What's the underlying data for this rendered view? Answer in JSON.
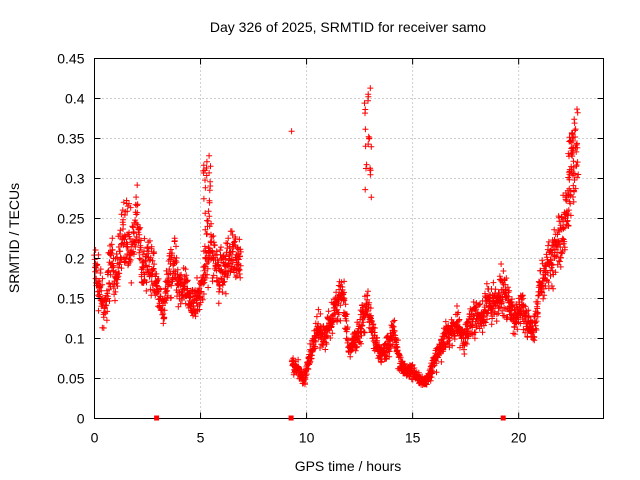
{
  "chart_data": {
    "type": "scatter",
    "title": "Day 326 of 2025, SRMTID for receiver samo",
    "xlabel": "GPS time / hours",
    "ylabel": "SRMTID / TECUs",
    "xlim": [
      0,
      24.0
    ],
    "ylim": [
      0,
      0.45
    ],
    "x_ticks": [
      0,
      5,
      10,
      15,
      20
    ],
    "x_tick_labels": [
      "0",
      "5",
      "10",
      "15",
      "20"
    ],
    "y_ticks": [
      0,
      0.05,
      0.1,
      0.15,
      0.2,
      0.25,
      0.3,
      0.35,
      0.4,
      0.45
    ],
    "y_tick_labels": [
      "0",
      "0.05",
      "0.1",
      "0.15",
      "0.2",
      "0.25",
      "0.3",
      "0.35",
      "0.4",
      "0.45"
    ],
    "grid": true,
    "colors": {
      "series": "#ff0000",
      "axis": "#000000",
      "grid": "#a0a0a0"
    },
    "series": [
      {
        "name": "SRMTID",
        "marker": "+",
        "segments": [
          {
            "x_start": 0.0,
            "x_end": 6.9,
            "points": [
              [
                0.0,
                0.19
              ],
              [
                0.25,
                0.16
              ],
              [
                0.5,
                0.13
              ],
              [
                0.75,
                0.2
              ],
              [
                1.0,
                0.17
              ],
              [
                1.25,
                0.22
              ],
              [
                1.5,
                0.24
              ],
              [
                1.75,
                0.21
              ],
              [
                2.0,
                0.25
              ],
              [
                2.25,
                0.18
              ],
              [
                2.5,
                0.2
              ],
              [
                2.75,
                0.19
              ],
              [
                3.0,
                0.15
              ],
              [
                3.25,
                0.13
              ],
              [
                3.5,
                0.18
              ],
              [
                3.75,
                0.2
              ],
              [
                4.0,
                0.17
              ],
              [
                4.25,
                0.16
              ],
              [
                4.5,
                0.15
              ],
              [
                4.75,
                0.14
              ],
              [
                5.0,
                0.16
              ],
              [
                5.25,
                0.2
              ],
              [
                5.5,
                0.22
              ],
              [
                5.75,
                0.19
              ],
              [
                6.0,
                0.18
              ],
              [
                6.25,
                0.19
              ],
              [
                6.5,
                0.21
              ],
              [
                6.75,
                0.2
              ]
            ]
          },
          {
            "x_start": 9.3,
            "x_end": 22.8,
            "points": [
              [
                9.3,
                0.07
              ],
              [
                9.6,
                0.06
              ],
              [
                9.9,
                0.05
              ],
              [
                10.2,
                0.08
              ],
              [
                10.5,
                0.11
              ],
              [
                10.8,
                0.1
              ],
              [
                11.1,
                0.12
              ],
              [
                11.4,
                0.14
              ],
              [
                11.7,
                0.16
              ],
              [
                12.0,
                0.08
              ],
              [
                12.3,
                0.1
              ],
              [
                12.6,
                0.12
              ],
              [
                12.9,
                0.14
              ],
              [
                13.2,
                0.1
              ],
              [
                13.5,
                0.08
              ],
              [
                13.8,
                0.09
              ],
              [
                14.1,
                0.11
              ],
              [
                14.4,
                0.07
              ],
              [
                14.7,
                0.06
              ],
              [
                15.0,
                0.06
              ],
              [
                15.3,
                0.05
              ],
              [
                15.6,
                0.045
              ],
              [
                15.9,
                0.06
              ],
              [
                16.2,
                0.08
              ],
              [
                16.5,
                0.1
              ],
              [
                16.8,
                0.11
              ],
              [
                17.1,
                0.12
              ],
              [
                17.4,
                0.1
              ],
              [
                17.7,
                0.12
              ],
              [
                18.0,
                0.13
              ],
              [
                18.3,
                0.12
              ],
              [
                18.6,
                0.15
              ],
              [
                18.9,
                0.14
              ],
              [
                19.2,
                0.16
              ],
              [
                19.5,
                0.15
              ],
              [
                19.8,
                0.12
              ],
              [
                20.1,
                0.14
              ],
              [
                20.4,
                0.12
              ],
              [
                20.7,
                0.11
              ],
              [
                21.0,
                0.16
              ],
              [
                21.3,
                0.19
              ],
              [
                21.6,
                0.2
              ],
              [
                21.9,
                0.22
              ],
              [
                22.2,
                0.25
              ],
              [
                22.5,
                0.33
              ],
              [
                22.7,
                0.34
              ]
            ]
          }
        ],
        "spikes": [
          [
            5.3,
            0.33
          ],
          [
            12.9,
            0.42
          ],
          [
            22.5,
            0.36
          ]
        ]
      }
    ],
    "gap_markers_x": [
      2.93,
      9.27,
      19.27
    ]
  }
}
